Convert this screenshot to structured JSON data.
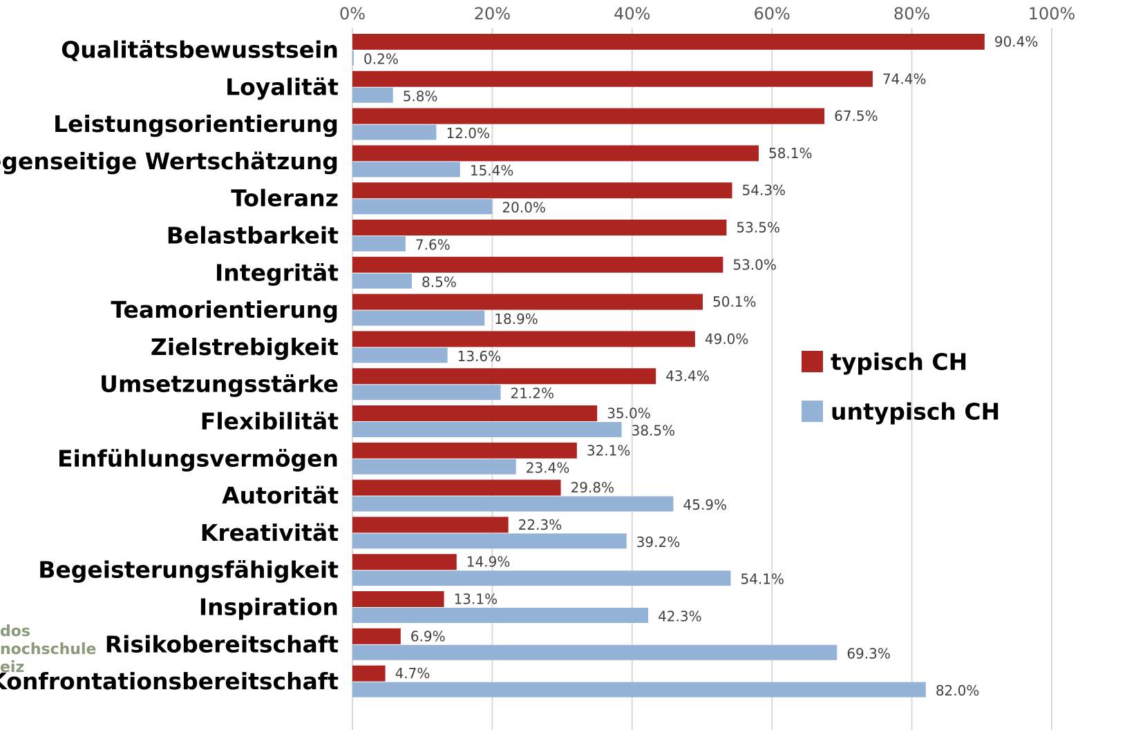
{
  "chart_data": {
    "type": "bar",
    "orientation": "horizontal",
    "categories": [
      "Qualitätsbewusstsein",
      "Loyalität",
      "Leistungsorientierung",
      "Gegenseitige Wertschätzung",
      "Toleranz",
      "Belastbarkeit",
      "Integrität",
      "Teamorientierung",
      "Zielstrebigkeit",
      "Umsetzungsstärke",
      "Flexibilität",
      "Einfühlungsvermögen",
      "Autorität",
      "Kreativität",
      "Begeisterungsfähigkeit",
      "Inspiration",
      "Risikobereitschaft",
      "Konfrontationsbereitschaft"
    ],
    "series": [
      {
        "name": "typisch CH",
        "color": "#ac2521",
        "values": [
          90.4,
          74.4,
          67.5,
          58.1,
          54.3,
          53.5,
          53.0,
          50.1,
          49.0,
          43.4,
          35.0,
          32.1,
          29.8,
          22.3,
          14.9,
          13.1,
          6.9,
          4.7
        ],
        "value_labels": [
          "90.4%",
          "74.4%",
          "67.5%",
          "58.1%",
          "54.3%",
          "53.5%",
          "53.0%",
          "50.1%",
          "49.0%",
          "43.4%",
          "35.0%",
          "32.1%",
          "29.8%",
          "22.3%",
          "14.9%",
          "13.1%",
          "6.9%",
          "4.7%"
        ]
      },
      {
        "name": "untypisch CH",
        "color": "#95b3d7",
        "values": [
          0.2,
          5.8,
          12.0,
          15.4,
          20.0,
          7.6,
          8.5,
          18.9,
          13.6,
          21.2,
          38.5,
          23.4,
          45.9,
          39.2,
          54.1,
          42.3,
          69.3,
          82.0
        ],
        "value_labels": [
          "0.2%",
          "5.8%",
          "12.0%",
          "15.4%",
          "20.0%",
          "7.6%",
          "8.5%",
          "18.9%",
          "13.6%",
          "21.2%",
          "38.5%",
          "23.4%",
          "45.9%",
          "39.2%",
          "54.1%",
          "42.3%",
          "69.3%",
          "82.0%"
        ]
      }
    ],
    "xlim": [
      0,
      100
    ],
    "xticks": [
      {
        "value": 0,
        "label": "0%"
      },
      {
        "value": 20,
        "label": "20%"
      },
      {
        "value": 40,
        "label": "40%"
      },
      {
        "value": 60,
        "label": "60%"
      },
      {
        "value": 80,
        "label": "80%"
      },
      {
        "value": 100,
        "label": "100%"
      }
    ],
    "grid": true,
    "legend": "right",
    "watermark": [
      "dos",
      "nochschule",
      "eiz"
    ]
  }
}
